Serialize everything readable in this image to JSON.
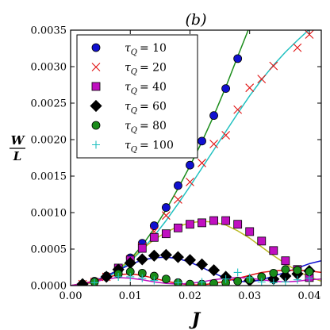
{
  "chart_data": {
    "type": "scatter",
    "title": "(b)",
    "xlabel": "J",
    "ylabel_num": "W",
    "ylabel_den": "L",
    "xlim": [
      0.0,
      0.042
    ],
    "ylim": [
      0.0,
      0.0035
    ],
    "x_ticks": [
      "0.00",
      "0.01",
      "0.02",
      "0.03",
      "0.04"
    ],
    "y_ticks": [
      "0.0000",
      "0.0005",
      "0.0010",
      "0.0015",
      "0.0020",
      "0.0025",
      "0.0030",
      "0.0035"
    ],
    "legend_position": "upper-left",
    "series": [
      {
        "name_symbol": "τ",
        "name_sub": "Q",
        "name_value": "= 10",
        "marker": "circle",
        "color": "#1010d0",
        "curve_color": "#1a8c1a",
        "points": [
          [
            0.002,
            2e-05
          ],
          [
            0.004,
            6e-05
          ],
          [
            0.006,
            0.00013
          ],
          [
            0.008,
            0.00024
          ],
          [
            0.01,
            0.00038
          ],
          [
            0.012,
            0.00058
          ],
          [
            0.014,
            0.00082
          ],
          [
            0.016,
            0.00107
          ],
          [
            0.018,
            0.00137
          ],
          [
            0.02,
            0.00165
          ],
          [
            0.022,
            0.00198
          ],
          [
            0.024,
            0.00233
          ],
          [
            0.026,
            0.0027
          ],
          [
            0.028,
            0.00311
          ]
        ],
        "curve": [
          [
            0.0,
            0.0
          ],
          [
            0.002,
            1.3e-05
          ],
          [
            0.004,
            5e-05
          ],
          [
            0.006,
            0.00012
          ],
          [
            0.008,
            0.00022
          ],
          [
            0.01,
            0.00036
          ],
          [
            0.012,
            0.00055
          ],
          [
            0.014,
            0.00078
          ],
          [
            0.016,
            0.00104
          ],
          [
            0.018,
            0.00133
          ],
          [
            0.02,
            0.00164
          ],
          [
            0.022,
            0.00197
          ],
          [
            0.024,
            0.00233
          ],
          [
            0.026,
            0.00272
          ],
          [
            0.028,
            0.00314
          ],
          [
            0.03,
            0.00355
          ]
        ]
      },
      {
        "name_symbol": "τ",
        "name_sub": "Q",
        "name_value": "= 20",
        "marker": "x",
        "color": "#e01010",
        "curve_color": "#20c0c0",
        "points": [
          [
            0.002,
            2e-05
          ],
          [
            0.004,
            5e-05
          ],
          [
            0.006,
            0.00012
          ],
          [
            0.008,
            0.00022
          ],
          [
            0.01,
            0.00036
          ],
          [
            0.012,
            0.00053
          ],
          [
            0.014,
            0.00074
          ],
          [
            0.016,
            0.00096
          ],
          [
            0.018,
            0.00118
          ],
          [
            0.02,
            0.00142
          ],
          [
            0.022,
            0.00168
          ],
          [
            0.024,
            0.00194
          ],
          [
            0.026,
            0.00206
          ],
          [
            0.028,
            0.00241
          ],
          [
            0.03,
            0.00271
          ],
          [
            0.032,
            0.00283
          ],
          [
            0.034,
            0.00301
          ],
          [
            0.038,
            0.00326
          ],
          [
            0.04,
            0.00344
          ]
        ],
        "curve": [
          [
            0.0,
            0.0
          ],
          [
            0.002,
            1.2e-05
          ],
          [
            0.004,
            5e-05
          ],
          [
            0.006,
            0.00011
          ],
          [
            0.008,
            0.0002
          ],
          [
            0.01,
            0.00033
          ],
          [
            0.012,
            0.00049
          ],
          [
            0.014,
            0.00068
          ],
          [
            0.016,
            0.00089
          ],
          [
            0.018,
            0.00112
          ],
          [
            0.02,
            0.00136
          ],
          [
            0.022,
            0.00161
          ],
          [
            0.024,
            0.00186
          ],
          [
            0.026,
            0.00211
          ],
          [
            0.028,
            0.00236
          ],
          [
            0.03,
            0.0026
          ],
          [
            0.032,
            0.00282
          ],
          [
            0.034,
            0.00302
          ],
          [
            0.036,
            0.0032
          ],
          [
            0.038,
            0.00336
          ],
          [
            0.04,
            0.00351
          ]
        ]
      },
      {
        "name_symbol": "τ",
        "name_sub": "Q",
        "name_value": "= 40",
        "marker": "square",
        "color": "#c010c0",
        "curve_color": "#b8b820",
        "points": [
          [
            0.008,
            0.00024
          ],
          [
            0.01,
            0.00035
          ],
          [
            0.012,
            0.00051
          ],
          [
            0.014,
            0.00066
          ],
          [
            0.016,
            0.00071
          ],
          [
            0.018,
            0.00079
          ],
          [
            0.02,
            0.00084
          ],
          [
            0.022,
            0.00086
          ],
          [
            0.024,
            0.00089
          ],
          [
            0.026,
            0.00089
          ],
          [
            0.028,
            0.00084
          ],
          [
            0.03,
            0.00074
          ],
          [
            0.032,
            0.00061
          ],
          [
            0.034,
            0.00048
          ],
          [
            0.036,
            0.00034
          ],
          [
            0.038,
            0.00022
          ],
          [
            0.04,
            0.00011
          ]
        ],
        "curve": [
          [
            0.0,
            0.0
          ],
          [
            0.004,
            4e-05
          ],
          [
            0.008,
            0.00022
          ],
          [
            0.01,
            0.00035
          ],
          [
            0.012,
            0.0005
          ],
          [
            0.014,
            0.00063
          ],
          [
            0.016,
            0.00073
          ],
          [
            0.018,
            0.00081
          ],
          [
            0.02,
            0.00086
          ],
          [
            0.022,
            0.00088
          ],
          [
            0.024,
            0.00087
          ],
          [
            0.026,
            0.00083
          ],
          [
            0.028,
            0.00075
          ],
          [
            0.03,
            0.00065
          ],
          [
            0.032,
            0.00053
          ],
          [
            0.034,
            0.00041
          ],
          [
            0.036,
            0.0003
          ],
          [
            0.038,
            0.0002
          ],
          [
            0.04,
            0.00012
          ],
          [
            0.042,
            6e-05
          ]
        ]
      },
      {
        "name_symbol": "τ",
        "name_sub": "Q",
        "name_value": "= 60",
        "marker": "diamond",
        "color": "#000000",
        "curve_color": "#1010d0",
        "points": [
          [
            0.002,
            2e-05
          ],
          [
            0.006,
            0.00012
          ],
          [
            0.008,
            0.00022
          ],
          [
            0.01,
            0.00031
          ],
          [
            0.012,
            0.00036
          ],
          [
            0.014,
            0.00041
          ],
          [
            0.016,
            0.00042
          ],
          [
            0.018,
            0.00039
          ],
          [
            0.02,
            0.00035
          ],
          [
            0.022,
            0.00029
          ],
          [
            0.024,
            0.00021
          ],
          [
            0.026,
            0.00012
          ],
          [
            0.03,
            7e-05
          ],
          [
            0.034,
            9e-05
          ],
          [
            0.036,
            0.00013
          ],
          [
            0.038,
            0.00016
          ],
          [
            0.04,
            0.0002
          ]
        ],
        "curve": [
          [
            0.0,
            0.0
          ],
          [
            0.004,
            6e-05
          ],
          [
            0.008,
            0.00021
          ],
          [
            0.01,
            0.00029
          ],
          [
            0.012,
            0.00035
          ],
          [
            0.014,
            0.00038
          ],
          [
            0.016,
            0.00039
          ],
          [
            0.018,
            0.00037
          ],
          [
            0.02,
            0.00032
          ],
          [
            0.022,
            0.00025
          ],
          [
            0.024,
            0.00017
          ],
          [
            0.026,
            0.0001
          ],
          [
            0.028,
            6e-05
          ],
          [
            0.03,
            5e-05
          ],
          [
            0.032,
            8e-05
          ],
          [
            0.034,
            0.00013
          ],
          [
            0.036,
            0.00018
          ],
          [
            0.038,
            0.00024
          ],
          [
            0.04,
            0.0003
          ],
          [
            0.042,
            0.00034
          ]
        ]
      },
      {
        "name_symbol": "τ",
        "name_sub": "Q",
        "name_value": "= 80",
        "marker": "circle",
        "color": "#1a8c1a",
        "curve_color": "#e01010",
        "points": [
          [
            0.004,
            5e-05
          ],
          [
            0.008,
            0.00016
          ],
          [
            0.01,
            0.00019
          ],
          [
            0.012,
            0.00017
          ],
          [
            0.014,
            0.00013
          ],
          [
            0.016,
            9e-05
          ],
          [
            0.018,
            4e-05
          ],
          [
            0.02,
            2e-05
          ],
          [
            0.022,
            2e-05
          ],
          [
            0.024,
            3e-05
          ],
          [
            0.026,
            4e-05
          ],
          [
            0.028,
            6e-05
          ],
          [
            0.03,
            8e-05
          ],
          [
            0.032,
            0.00012
          ],
          [
            0.034,
            0.00017
          ],
          [
            0.036,
            0.00022
          ],
          [
            0.038,
            0.00021
          ],
          [
            0.04,
            0.00019
          ]
        ],
        "curve": [
          [
            0.0,
            0.0
          ],
          [
            0.004,
            6e-05
          ],
          [
            0.006,
            0.00011
          ],
          [
            0.008,
            0.00015
          ],
          [
            0.01,
            0.00016
          ],
          [
            0.012,
            0.00014
          ],
          [
            0.014,
            0.0001
          ],
          [
            0.016,
            6e-05
          ],
          [
            0.018,
            3e-05
          ],
          [
            0.02,
            1e-05
          ],
          [
            0.022,
            1e-05
          ],
          [
            0.024,
            3e-05
          ],
          [
            0.026,
            6e-05
          ],
          [
            0.028,
            0.0001
          ],
          [
            0.03,
            0.00014
          ],
          [
            0.032,
            0.00018
          ],
          [
            0.034,
            0.0002
          ],
          [
            0.036,
            0.00021
          ],
          [
            0.038,
            0.00021
          ],
          [
            0.04,
            0.0002
          ],
          [
            0.042,
            0.00018
          ]
        ]
      },
      {
        "name_symbol": "τ",
        "name_sub": "Q",
        "name_value": "= 100",
        "marker": "plus",
        "color": "#20c0c0",
        "curve_color": "#c010c0",
        "points": [
          [
            0.004,
            4e-05
          ],
          [
            0.008,
            0.00012
          ],
          [
            0.01,
            0.00012
          ],
          [
            0.012,
            0.0001
          ],
          [
            0.014,
            7e-05
          ],
          [
            0.018,
            4e-05
          ],
          [
            0.022,
            5e-05
          ],
          [
            0.026,
            9e-05
          ],
          [
            0.028,
            0.00018
          ],
          [
            0.03,
            0.00011
          ],
          [
            0.032,
            5e-05
          ],
          [
            0.034,
            4e-05
          ],
          [
            0.036,
            5e-05
          ],
          [
            0.038,
            8e-05
          ],
          [
            0.04,
            0.0001
          ]
        ],
        "curve": [
          [
            0.0,
            0.0
          ],
          [
            0.004,
            5e-05
          ],
          [
            0.006,
            9e-05
          ],
          [
            0.008,
            0.00011
          ],
          [
            0.01,
            0.0001
          ],
          [
            0.012,
            8e-05
          ],
          [
            0.014,
            5e-05
          ],
          [
            0.016,
            3e-05
          ],
          [
            0.018,
            2e-05
          ],
          [
            0.02,
            3e-05
          ],
          [
            0.022,
            5e-05
          ],
          [
            0.024,
            8e-05
          ],
          [
            0.026,
            0.0001
          ],
          [
            0.028,
            0.00011
          ],
          [
            0.03,
            0.0001
          ],
          [
            0.032,
            8e-05
          ],
          [
            0.034,
            6e-05
          ],
          [
            0.036,
            5e-05
          ],
          [
            0.038,
            6e-05
          ],
          [
            0.04,
            8e-05
          ],
          [
            0.042,
            9e-05
          ]
        ]
      }
    ]
  }
}
